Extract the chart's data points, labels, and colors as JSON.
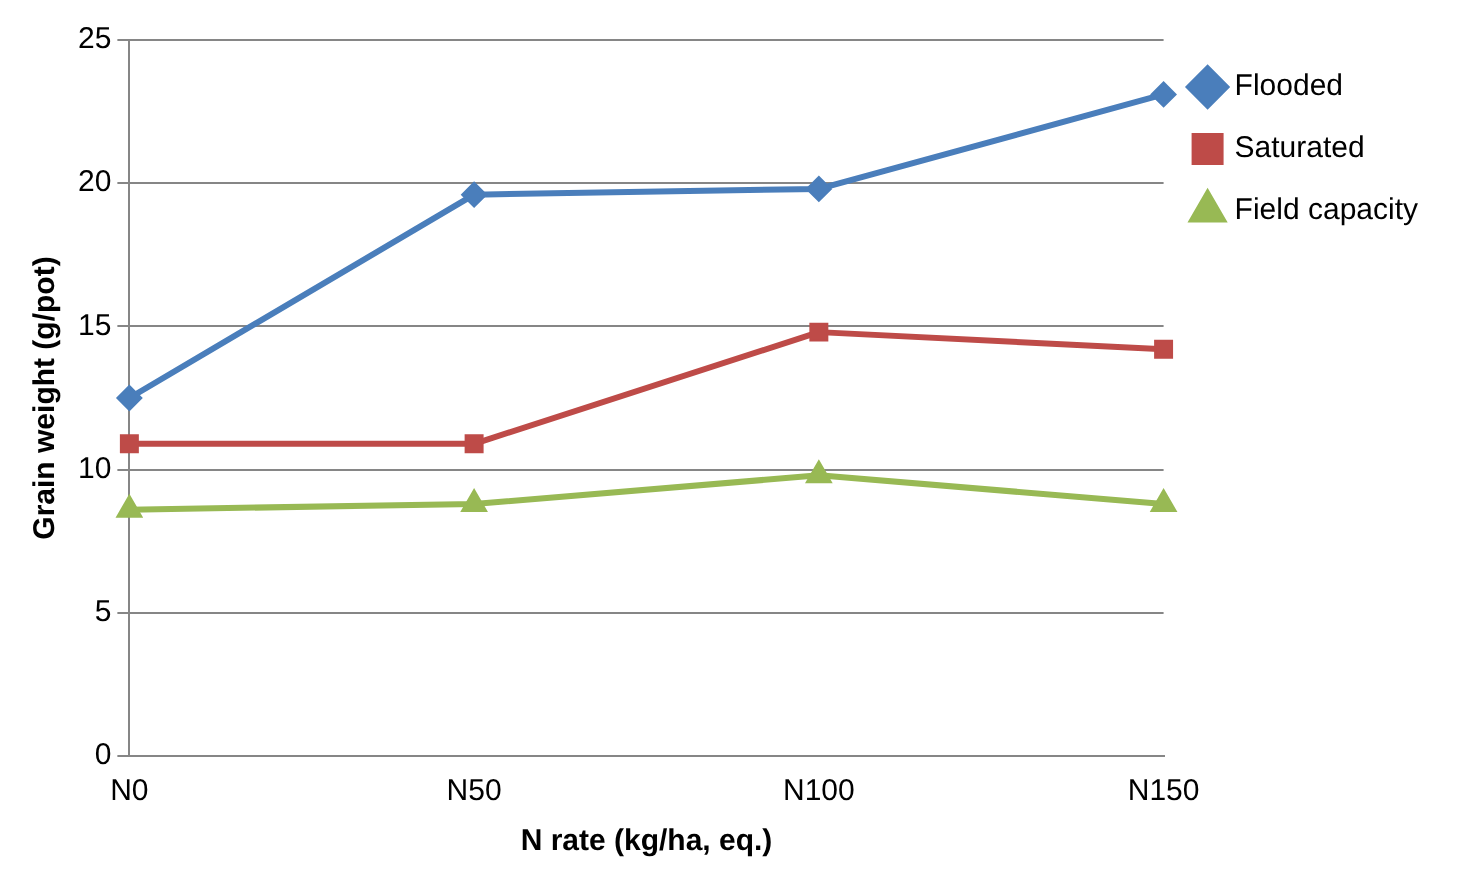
{
  "chart_data": {
    "type": "line",
    "xlabel": "N rate (kg/ha, eq.)",
    "ylabel": "Grain weight (g/pot)",
    "categories": [
      "N0",
      "N50",
      "N100",
      "N150"
    ],
    "series": [
      {
        "name": "Flooded",
        "color": "#4a7ebb",
        "marker": "diamond",
        "values": [
          12.5,
          19.6,
          19.8,
          23.1
        ]
      },
      {
        "name": "Saturated",
        "color": "#be4b48",
        "marker": "square",
        "values": [
          10.9,
          10.9,
          14.8,
          14.2
        ]
      },
      {
        "name": "Field capacity",
        "color": "#98b954",
        "marker": "triangle",
        "values": [
          8.6,
          8.8,
          9.8,
          8.8
        ]
      }
    ],
    "ylim": [
      0,
      25
    ],
    "yticks": [
      0,
      5,
      10,
      15,
      20,
      25
    ],
    "grid": "y",
    "legend": "right",
    "line_style": "solid"
  }
}
